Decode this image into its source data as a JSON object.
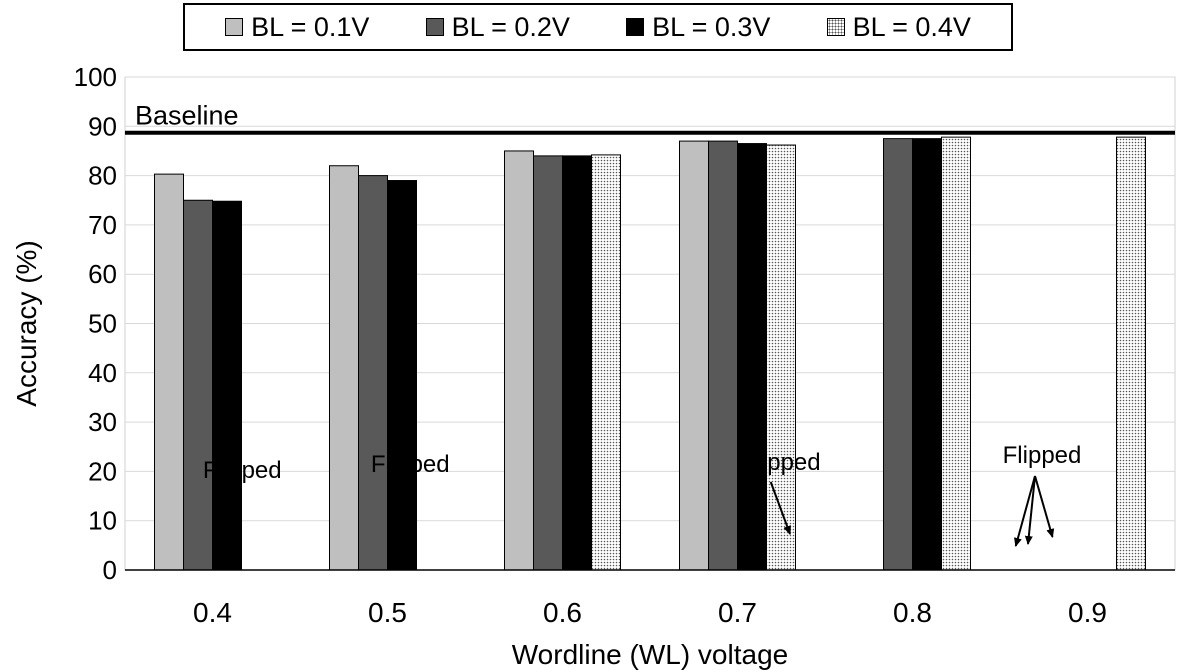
{
  "chart_data": {
    "type": "bar",
    "xlabel": "Wordline (WL) voltage",
    "ylabel": "Accuracy (%)",
    "ylim": [
      0,
      100
    ],
    "yticks": [
      0,
      10,
      20,
      30,
      40,
      50,
      60,
      70,
      80,
      90,
      100
    ],
    "grid": true,
    "legend_position": "top",
    "categories": [
      "0.4",
      "0.5",
      "0.6",
      "0.7",
      "0.8",
      "0.9"
    ],
    "series": [
      {
        "name": "BL = 0.1V",
        "color": "#bfbfbf",
        "pattern": "solid",
        "values": [
          80.3,
          82.0,
          85.0,
          87.0,
          null,
          null
        ]
      },
      {
        "name": "BL = 0.2V",
        "color": "#595959",
        "pattern": "solid",
        "values": [
          75.0,
          80.0,
          84.0,
          87.0,
          87.5,
          null
        ]
      },
      {
        "name": "BL = 0.3V",
        "color": "#000000",
        "pattern": "solid",
        "values": [
          74.8,
          79.0,
          84.0,
          86.5,
          87.5,
          null
        ]
      },
      {
        "name": "BL = 0.4V",
        "color": "#ffffff",
        "pattern": "dots",
        "values": [
          null,
          null,
          84.2,
          86.2,
          87.8,
          87.8
        ]
      }
    ],
    "baseline": {
      "label": "Baseline",
      "value": 88.7
    },
    "annotations": [
      {
        "text": "Flipped",
        "category": "0.4"
      },
      {
        "text": "Flipped",
        "category": "0.5"
      },
      {
        "text": "Flipped",
        "category": "0.8"
      },
      {
        "text": "Flipped",
        "category": "0.9"
      }
    ]
  }
}
